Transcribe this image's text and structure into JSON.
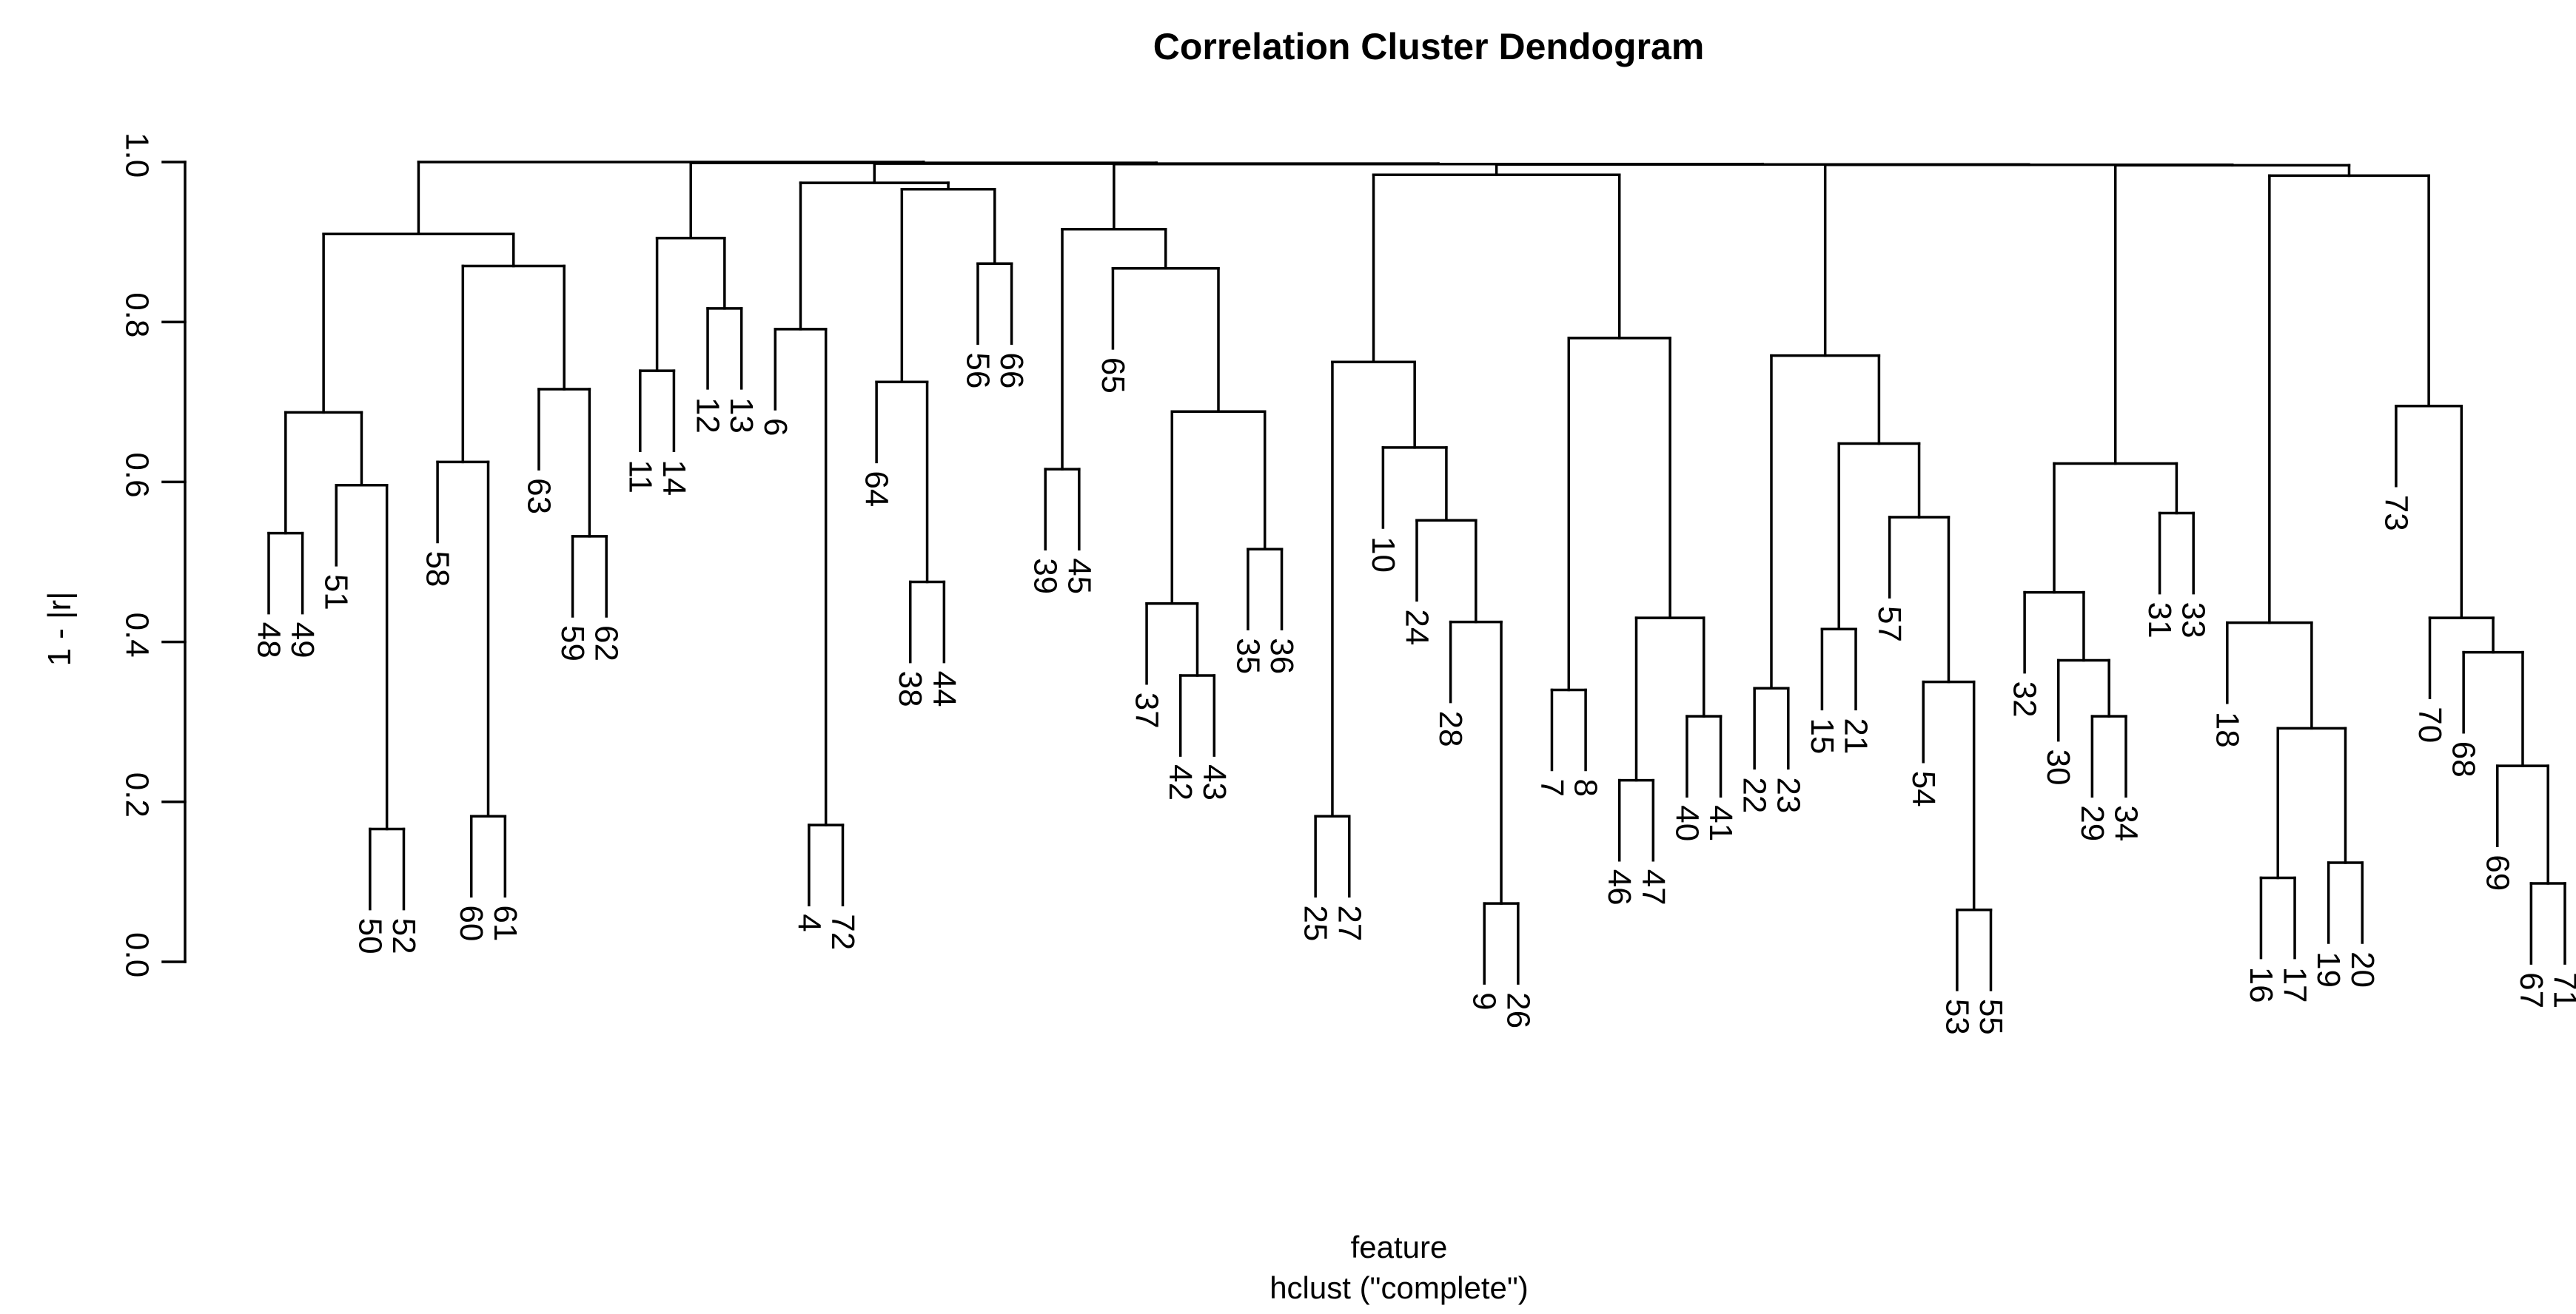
{
  "page": {
    "background": "#ffffff"
  },
  "chart_data": {
    "type": "dendrogram",
    "title": "Correlation Cluster Dendogram",
    "ylabel": "1 - |r|",
    "xlabel": "feature",
    "xlabel_sub": "hclust (\"complete\")",
    "yticks": [
      "0.0",
      "0.2",
      "0.4",
      "0.6",
      "0.8",
      "1.0"
    ],
    "ylim": [
      0.0,
      1.0
    ],
    "hang": 0.1,
    "line_color": "#000000",
    "legend": "none",
    "grid": false,
    "leaf_order": [
      "48",
      "49",
      "51",
      "50",
      "52",
      "58",
      "60",
      "61",
      "63",
      "59",
      "62",
      "11",
      "14",
      "12",
      "13",
      "6",
      "4",
      "72",
      "64",
      "38",
      "44",
      "56",
      "66",
      "39",
      "45",
      "65",
      "37",
      "42",
      "43",
      "35",
      "36",
      "25",
      "27",
      "10",
      "24",
      "28",
      "9",
      "26",
      "7",
      "8",
      "46",
      "47",
      "40",
      "41",
      "22",
      "23",
      "15",
      "21",
      "57",
      "54",
      "53",
      "55",
      "32",
      "30",
      "29",
      "34",
      "31",
      "33",
      "18",
      "16",
      "17",
      "19",
      "20",
      "73",
      "70",
      "68",
      "69",
      "67",
      "71"
    ],
    "tree": {
      "h": 1.0,
      "c": [
        {
          "h": 0.91,
          "c": [
            {
              "h": 0.687,
              "c": [
                {
                  "h": 0.536,
                  "c": [
                    "48",
                    "49"
                  ]
                },
                {
                  "h": 0.596,
                  "c": [
                    "51",
                    {
                      "h": 0.166,
                      "c": [
                        "50",
                        "52"
                      ]
                    }
                  ]
                }
              ]
            },
            {
              "h": 0.87,
              "c": [
                {
                  "h": 0.625,
                  "c": [
                    "58",
                    {
                      "h": 0.182,
                      "c": [
                        "60",
                        "61"
                      ]
                    }
                  ]
                },
                {
                  "h": 0.716,
                  "c": [
                    "63",
                    {
                      "h": 0.532,
                      "c": [
                        "59",
                        "62"
                      ]
                    }
                  ]
                }
              ]
            }
          ]
        },
        {
          "h": 0.999,
          "c": [
            {
              "h": 0.905,
              "c": [
                {
                  "h": 0.739,
                  "c": [
                    "11",
                    "14"
                  ]
                },
                {
                  "h": 0.817,
                  "c": [
                    "12",
                    "13"
                  ]
                }
              ]
            },
            {
              "h": 0.998,
              "c": [
                {
                  "h": 0.974,
                  "c": [
                    {
                      "h": 0.791,
                      "c": [
                        "6",
                        {
                          "h": 0.171,
                          "c": [
                            "4",
                            "72"
                          ]
                        }
                      ]
                    },
                    {
                      "h": 0.966,
                      "c": [
                        {
                          "h": 0.725,
                          "c": [
                            "64",
                            {
                              "h": 0.475,
                              "c": [
                                "38",
                                "44"
                              ]
                            }
                          ]
                        },
                        {
                          "h": 0.873,
                          "c": [
                            "56",
                            "66"
                          ]
                        }
                      ]
                    }
                  ]
                },
                {
                  "h": 0.9975,
                  "c": [
                    {
                      "h": 0.916,
                      "c": [
                        {
                          "h": 0.616,
                          "c": [
                            "39",
                            "45"
                          ]
                        },
                        {
                          "h": 0.867,
                          "c": [
                            "65",
                            {
                              "h": 0.688,
                              "c": [
                                {
                                  "h": 0.448,
                                  "c": [
                                    "37",
                                    {
                                      "h": 0.358,
                                      "c": [
                                        "42",
                                        "43"
                                      ]
                                    }
                                  ]
                                },
                                {
                                  "h": 0.516,
                                  "c": [
                                    "35",
                                    "36"
                                  ]
                                }
                              ]
                            }
                          ]
                        }
                      ]
                    },
                    {
                      "h": 0.997,
                      "c": [
                        {
                          "h": 0.984,
                          "c": [
                            {
                              "h": 0.75,
                              "c": [
                                {
                                  "h": 0.182,
                                  "c": [
                                    "25",
                                    "27"
                                  ]
                                },
                                {
                                  "h": 0.643,
                                  "c": [
                                    "10",
                                    {
                                      "h": 0.552,
                                      "c": [
                                        "24",
                                        {
                                          "h": 0.425,
                                          "c": [
                                            "28",
                                            {
                                              "h": 0.073,
                                              "c": [
                                                "9",
                                                "26"
                                              ]
                                            }
                                          ]
                                        }
                                      ]
                                    }
                                  ]
                                }
                              ]
                            },
                            {
                              "h": 0.78,
                              "c": [
                                {
                                  "h": 0.34,
                                  "c": [
                                    "7",
                                    "8"
                                  ]
                                },
                                {
                                  "h": 0.43,
                                  "c": [
                                    {
                                      "h": 0.227,
                                      "c": [
                                        "46",
                                        "47"
                                      ]
                                    },
                                    {
                                      "h": 0.307,
                                      "c": [
                                        "40",
                                        "41"
                                      ]
                                    }
                                  ]
                                }
                              ]
                            }
                          ]
                        },
                        {
                          "h": 0.9965,
                          "c": [
                            {
                              "h": 0.758,
                              "c": [
                                {
                                  "h": 0.342,
                                  "c": [
                                    "22",
                                    "23"
                                  ]
                                },
                                {
                                  "h": 0.648,
                                  "c": [
                                    {
                                      "h": 0.416,
                                      "c": [
                                        "15",
                                        "21"
                                      ]
                                    },
                                    {
                                      "h": 0.556,
                                      "c": [
                                        "57",
                                        {
                                          "h": 0.35,
                                          "c": [
                                            "54",
                                            {
                                              "h": 0.065,
                                              "c": [
                                                "53",
                                                "55"
                                              ]
                                            }
                                          ]
                                        }
                                      ]
                                    }
                                  ]
                                }
                              ]
                            },
                            {
                              "h": 0.996,
                              "c": [
                                {
                                  "h": 0.623,
                                  "c": [
                                    {
                                      "h": 0.462,
                                      "c": [
                                        "32",
                                        {
                                          "h": 0.377,
                                          "c": [
                                            "30",
                                            {
                                              "h": 0.307,
                                              "c": [
                                                "29",
                                                "34"
                                              ]
                                            }
                                          ]
                                        }
                                      ]
                                    },
                                    {
                                      "h": 0.561,
                                      "c": [
                                        "31",
                                        "33"
                                      ]
                                    }
                                  ]
                                },
                                {
                                  "h": 0.983,
                                  "c": [
                                    {
                                      "h": 0.424,
                                      "c": [
                                        "18",
                                        {
                                          "h": 0.292,
                                          "c": [
                                            {
                                              "h": 0.105,
                                              "c": [
                                                "16",
                                                "17"
                                              ]
                                            },
                                            {
                                              "h": 0.124,
                                              "c": [
                                                "19",
                                                "20"
                                              ]
                                            }
                                          ]
                                        }
                                      ]
                                    },
                                    {
                                      "h": 0.695,
                                      "c": [
                                        "73",
                                        {
                                          "h": 0.43,
                                          "c": [
                                            "70",
                                            {
                                              "h": 0.387,
                                              "c": [
                                                "68",
                                                {
                                                  "h": 0.245,
                                                  "c": [
                                                    "69",
                                                    {
                                                      "h": 0.098,
                                                      "c": [
                                                        "67",
                                                        "71"
                                                      ]
                                                    }
                                                  ]
                                                }
                                              ]
                                            }
                                          ]
                                        }
                                      ]
                                    }
                                  ]
                                }
                              ]
                            }
                          ]
                        }
                      ]
                    }
                  ]
                }
              ]
            }
          ]
        }
      ]
    }
  }
}
